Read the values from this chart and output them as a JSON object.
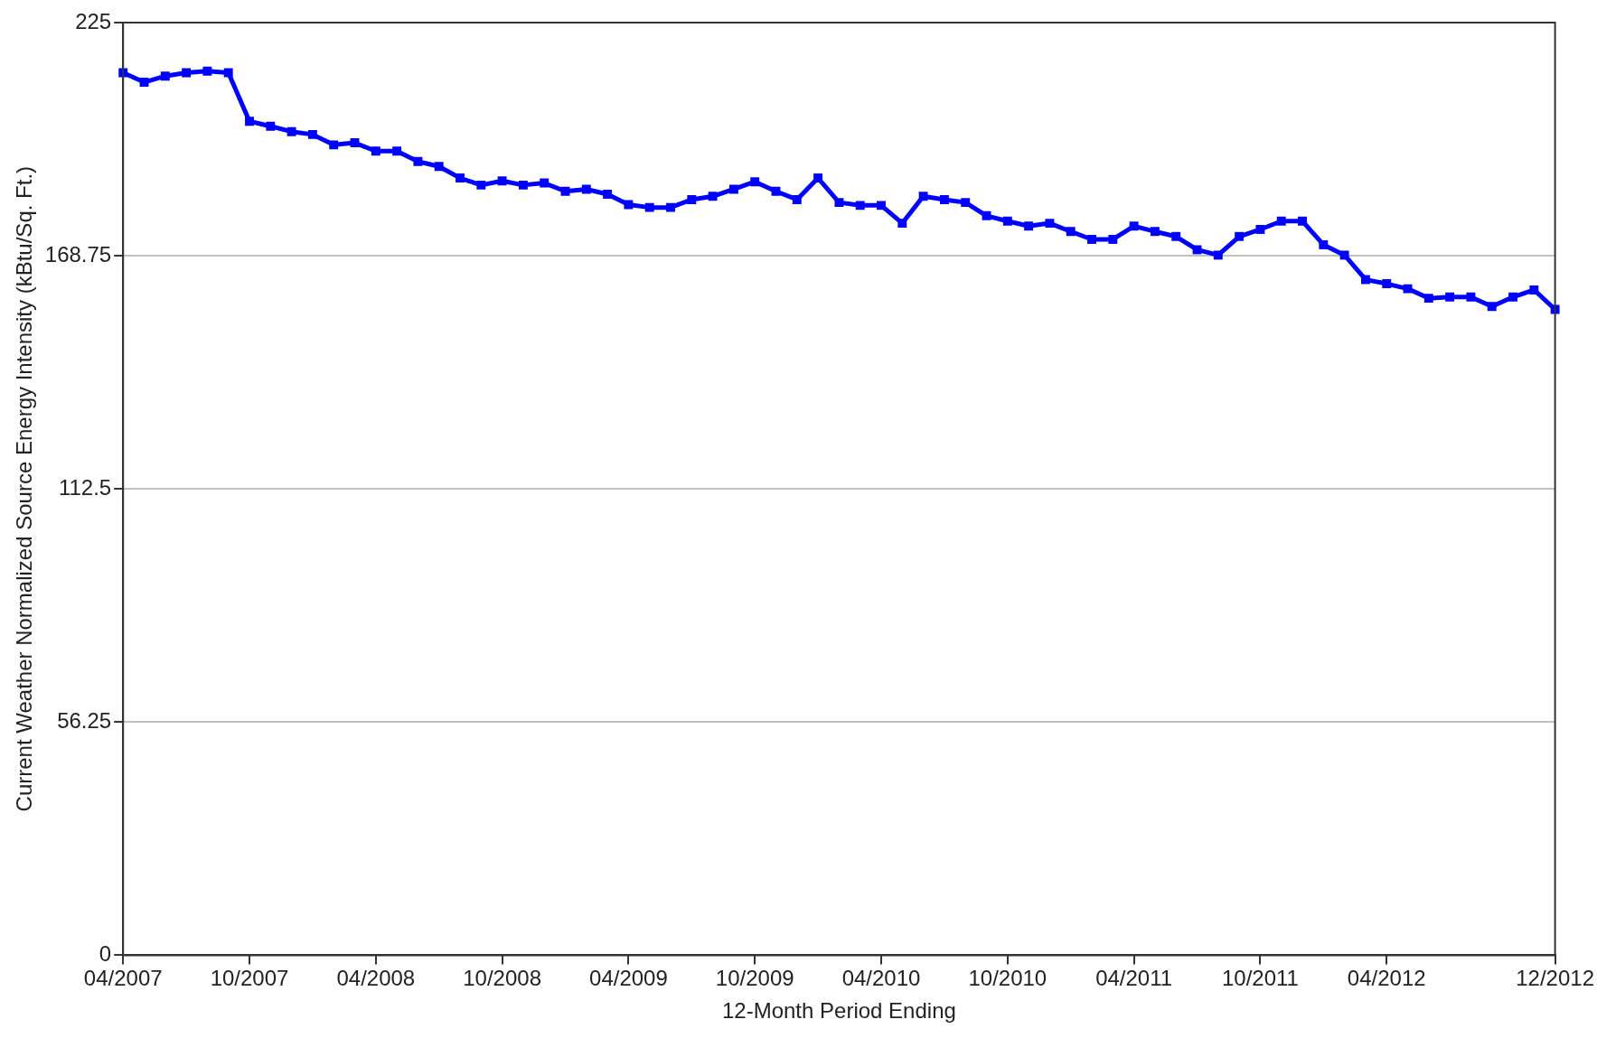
{
  "chart_data": {
    "type": "line",
    "xlabel": "12-Month Period Ending",
    "ylabel": "Current Weather Normalized Source Energy Intensity (kBtu/Sq. Ft.)",
    "categories": [
      "04/2007",
      null,
      null,
      null,
      null,
      null,
      "10/2007",
      null,
      null,
      null,
      null,
      null,
      "04/2008",
      null,
      null,
      null,
      null,
      null,
      "10/2008",
      null,
      null,
      null,
      null,
      null,
      "04/2009",
      null,
      null,
      null,
      null,
      null,
      "10/2009",
      null,
      null,
      null,
      null,
      null,
      "04/2010",
      null,
      null,
      null,
      null,
      null,
      "10/2010",
      null,
      null,
      null,
      null,
      null,
      "04/2011",
      null,
      null,
      null,
      null,
      null,
      "10/2011",
      null,
      null,
      null,
      null,
      null,
      "04/2012",
      null,
      null,
      null,
      null,
      null,
      null,
      null,
      "12/2012"
    ],
    "series": [
      {
        "color": "#0000ff",
        "values": [
          212.9,
          210.6,
          212.1,
          212.9,
          213.3,
          212.9,
          201.2,
          200.0,
          198.7,
          198.0,
          195.5,
          196.0,
          194.0,
          194.0,
          191.5,
          190.3,
          187.5,
          185.8,
          186.8,
          185.8,
          186.3,
          184.3,
          184.8,
          183.6,
          181.1,
          180.4,
          180.4,
          182.3,
          183.1,
          184.8,
          186.6,
          184.3,
          182.3,
          187.5,
          181.6,
          180.9,
          180.9,
          176.6,
          183.1,
          182.3,
          181.6,
          178.4,
          177.1,
          175.9,
          176.6,
          174.6,
          172.7,
          172.7,
          175.9,
          174.6,
          173.4,
          170.2,
          168.9,
          173.4,
          175.1,
          177.1,
          177.1,
          171.4,
          168.9,
          163.0,
          162.0,
          160.8,
          158.5,
          158.8,
          158.8,
          156.5,
          158.8,
          160.5,
          155.8
        ]
      }
    ],
    "ylim": [
      0,
      225
    ],
    "yticks": [
      0,
      56.25,
      112.5,
      168.75,
      225
    ],
    "grid": "y",
    "legend": false,
    "marker": "square",
    "line_style": "solid"
  }
}
